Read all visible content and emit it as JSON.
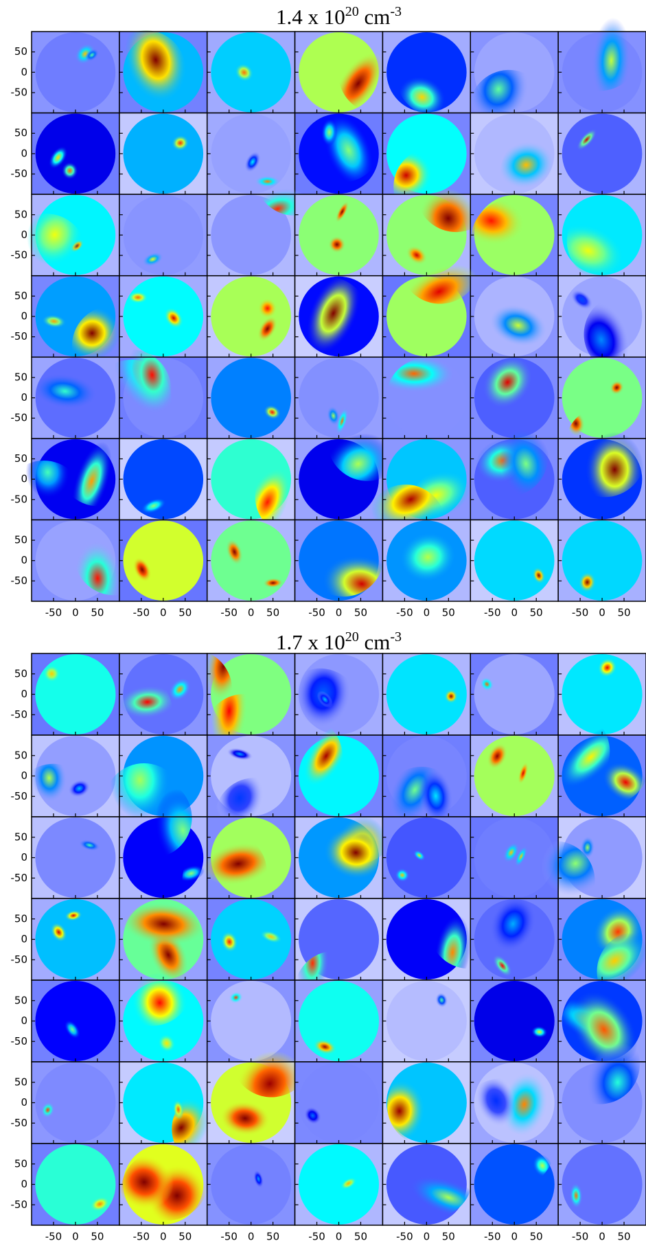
{
  "figures": [
    {
      "title": {
        "base": "1.4 x 10",
        "exponent": "20",
        "unit": " cm",
        "unit_exponent": "-3"
      }
    },
    {
      "title": {
        "base": "1.7 x 10",
        "exponent": "20",
        "unit": " cm",
        "unit_exponent": "-3"
      }
    }
  ],
  "axes": {
    "lim": [
      -100,
      100
    ],
    "ticks": [
      -50,
      0,
      50
    ]
  }
}
